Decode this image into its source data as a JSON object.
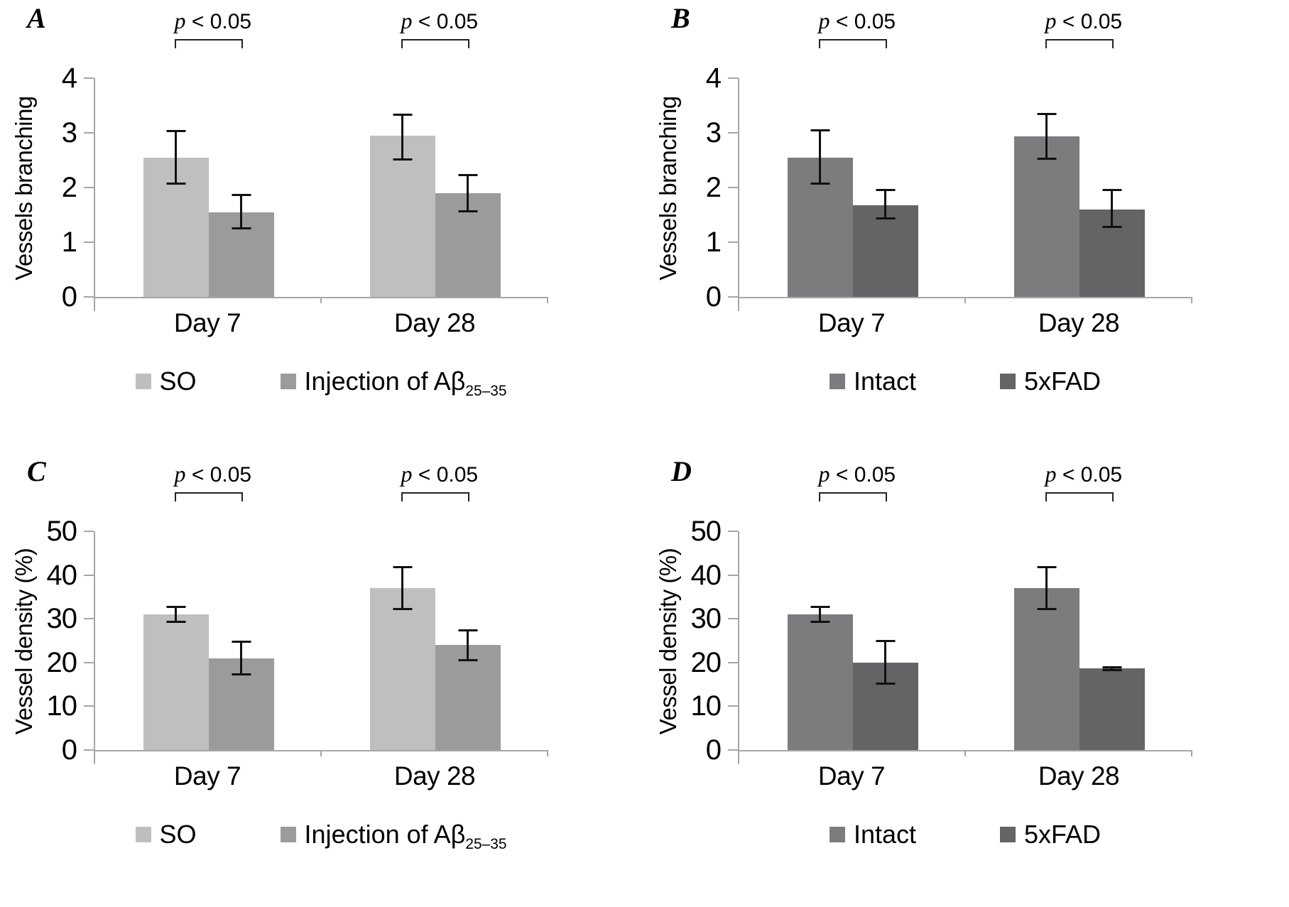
{
  "figure_title": "",
  "p_note": "p < 0.05",
  "chart_data": [
    {
      "type": "bar",
      "panel_letter": "A",
      "ylabel": "Vessels branching",
      "ylim": [
        0,
        4
      ],
      "yticks": [
        0,
        1,
        2,
        3,
        4
      ],
      "categories": [
        "Day 7",
        "Day 28"
      ],
      "grid": false,
      "legend_position": "bottom",
      "series": [
        {
          "name": "SO",
          "color": "#bfbfbf",
          "values": [
            2.55,
            2.95
          ],
          "err_low": [
            0.5,
            0.45
          ],
          "err_high": [
            0.5,
            0.4
          ]
        },
        {
          "name": "Injection of Aβ",
          "name_sub": "25–35",
          "color": "#9b9b9b",
          "values": [
            1.55,
            1.9
          ],
          "err_low": [
            0.32,
            0.35
          ],
          "err_high": [
            0.33,
            0.35
          ]
        }
      ],
      "significance": [
        {
          "group": 0,
          "p": "p",
          "rest": " < 0.05"
        },
        {
          "group": 1,
          "p": "p",
          "rest": " < 0.05"
        }
      ]
    },
    {
      "type": "bar",
      "panel_letter": "B",
      "ylabel": "Vessels branching",
      "ylim": [
        0,
        4
      ],
      "yticks": [
        0,
        1,
        2,
        3,
        4
      ],
      "categories": [
        "Day 7",
        "Day 28"
      ],
      "grid": false,
      "legend_position": "bottom",
      "series": [
        {
          "name": "Intact",
          "color": "#7c7c7f",
          "values": [
            2.55,
            2.93
          ],
          "err_low": [
            0.5,
            0.42
          ],
          "err_high": [
            0.52,
            0.43
          ]
        },
        {
          "name": "5xFAD",
          "color": "#646467",
          "values": [
            1.68,
            1.6
          ],
          "err_low": [
            0.27,
            0.34
          ],
          "err_high": [
            0.3,
            0.38
          ]
        }
      ],
      "significance": [
        {
          "group": 0,
          "p": "p",
          "rest": " < 0.05"
        },
        {
          "group": 1,
          "p": "p",
          "rest": " < 0.05"
        }
      ]
    },
    {
      "type": "bar",
      "panel_letter": "C",
      "ylabel": "Vessel density (%)",
      "ylim": [
        0,
        50
      ],
      "yticks": [
        0,
        10,
        20,
        30,
        40,
        50
      ],
      "categories": [
        "Day 7",
        "Day 28"
      ],
      "grid": false,
      "legend_position": "bottom",
      "series": [
        {
          "name": "SO",
          "color": "#bfbfbf",
          "values": [
            31,
            37
          ],
          "err_low": [
            2,
            5
          ],
          "err_high": [
            2,
            5
          ]
        },
        {
          "name": "Injection of Aβ",
          "name_sub": "25–35",
          "color": "#9b9b9b",
          "values": [
            21,
            24
          ],
          "err_low": [
            4,
            3.7
          ],
          "err_high": [
            4,
            3.6
          ]
        }
      ],
      "significance": [
        {
          "group": 0,
          "p": "p",
          "rest": " < 0.05"
        },
        {
          "group": 1,
          "p": "p",
          "rest": " < 0.05"
        }
      ]
    },
    {
      "type": "bar",
      "panel_letter": "D",
      "ylabel": "Vessel density (%)",
      "ylim": [
        0,
        50
      ],
      "yticks": [
        0,
        10,
        20,
        30,
        40,
        50
      ],
      "categories": [
        "Day 7",
        "Day 28"
      ],
      "grid": false,
      "legend_position": "bottom",
      "series": [
        {
          "name": "Intact",
          "color": "#7c7c7f",
          "values": [
            31,
            37
          ],
          "err_low": [
            2,
            5
          ],
          "err_high": [
            2,
            5
          ]
        },
        {
          "name": "5xFAD",
          "color": "#646467",
          "values": [
            20,
            18.6
          ],
          "err_low": [
            5,
            0.6
          ],
          "err_high": [
            5.2,
            0.6
          ]
        }
      ],
      "significance": [
        {
          "group": 0,
          "p": "p",
          "rest": " < 0.05"
        },
        {
          "group": 1,
          "p": "p",
          "rest": " < 0.05"
        }
      ]
    }
  ],
  "colors": {
    "axis": "#a6a6a6",
    "error_bar": "#111111",
    "text": "#000000",
    "series_light": "#bfbfbf",
    "series_mid": "#9b9b9b",
    "series_dark": "#7c7c7f",
    "series_darkest": "#646467"
  }
}
